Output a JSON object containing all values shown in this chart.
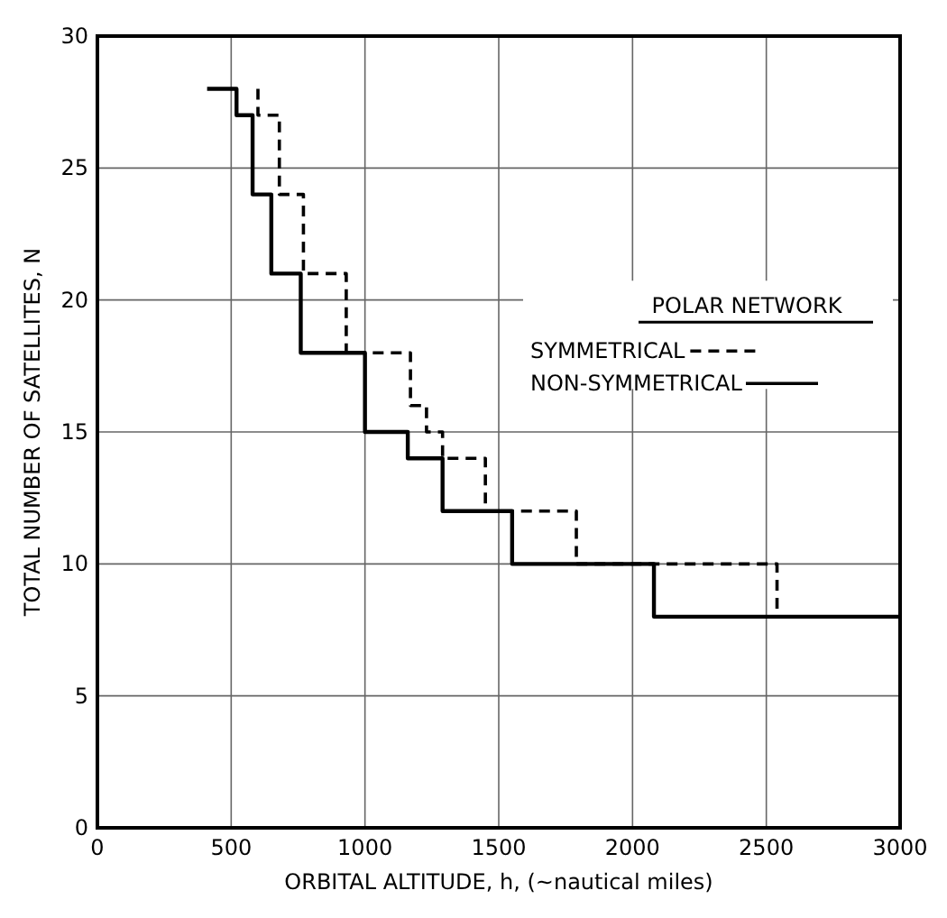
{
  "chart_data": {
    "type": "step",
    "xlabel": "ORBITAL ALTITUDE, h, (~nautical miles)",
    "ylabel": "TOTAL NUMBER OF SATELLITES, N",
    "legend_title": "POLAR NETWORK",
    "legend": "right",
    "grid": true,
    "xlim": [
      0,
      3000
    ],
    "ylim": [
      0,
      30
    ],
    "xticks": [
      0,
      500,
      1000,
      1500,
      2000,
      2500,
      3000
    ],
    "yticks": [
      0,
      5,
      10,
      15,
      20,
      25,
      30
    ],
    "series": [
      {
        "name": "SYMMETRICAL",
        "color": "#000000",
        "line_style": "dashed",
        "x": [
          600,
          600,
          680,
          770,
          930,
          1170,
          1230,
          1290,
          1450,
          1790,
          2540,
          3000
        ],
        "values": [
          28,
          27,
          24,
          21,
          18,
          16,
          15,
          14,
          12,
          10,
          8,
          8
        ]
      },
      {
        "name": "NON-SYMMETRICAL",
        "color": "#000000",
        "line_style": "solid",
        "x": [
          410,
          520,
          580,
          650,
          760,
          1000,
          1160,
          1290,
          1550,
          2080,
          3000
        ],
        "values": [
          28,
          27,
          24,
          21,
          18,
          15,
          14,
          12,
          10,
          8,
          8
        ]
      }
    ]
  }
}
